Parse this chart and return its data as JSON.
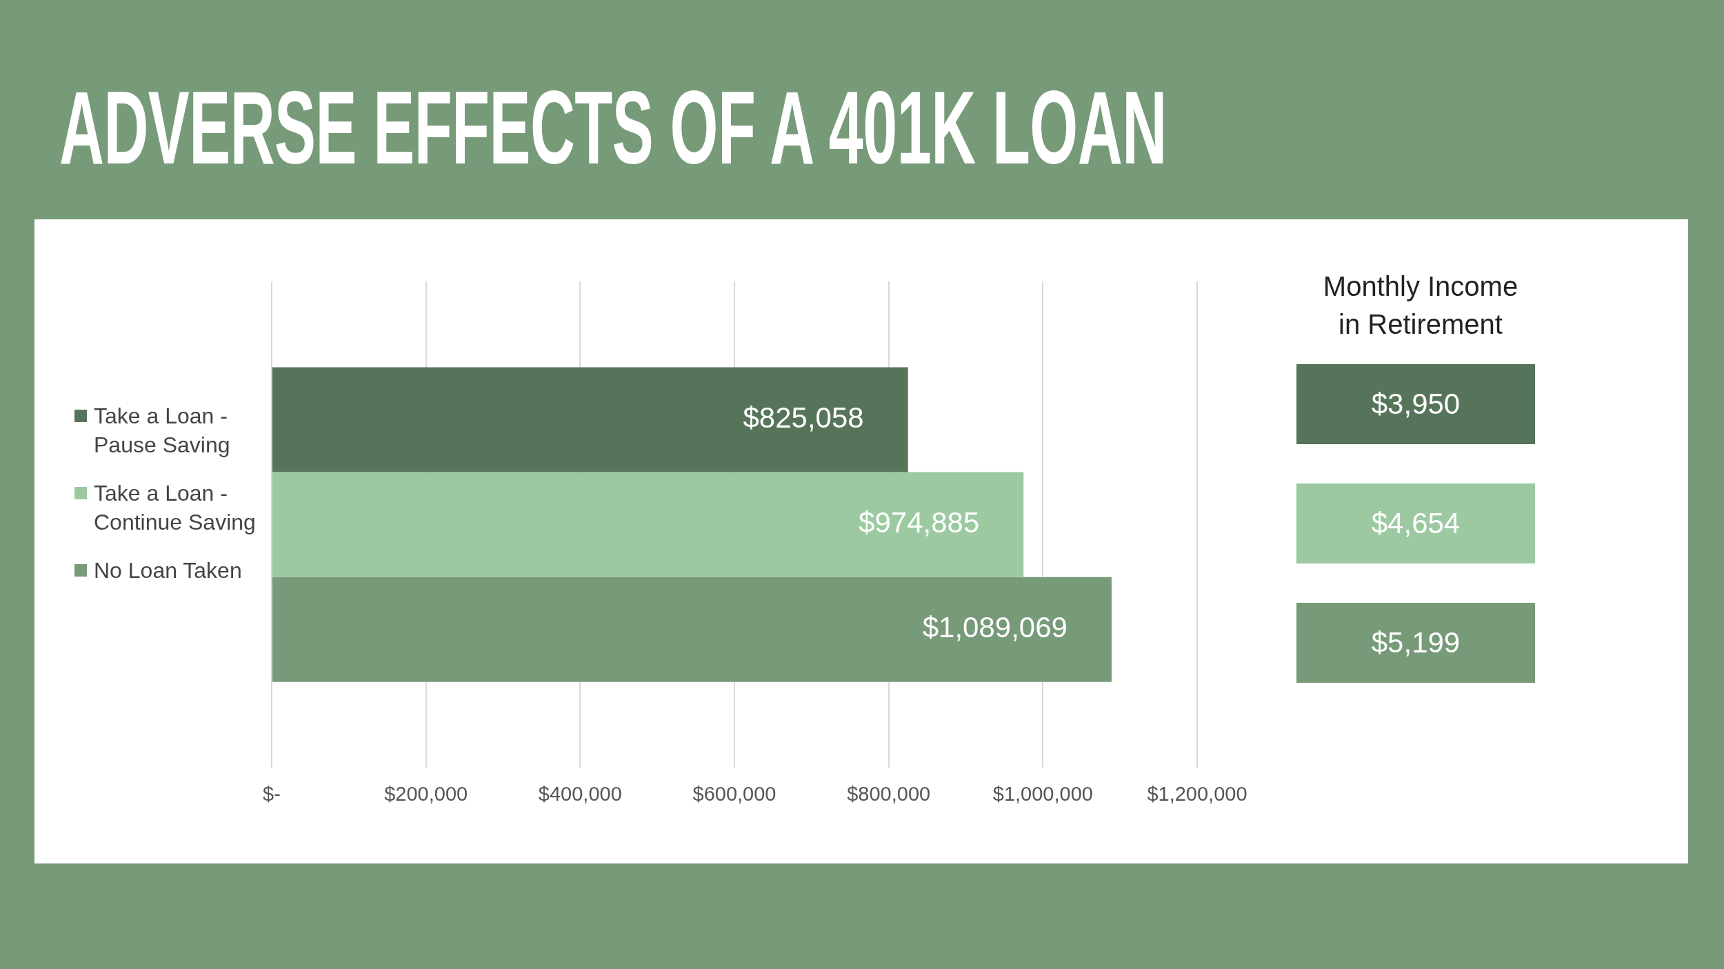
{
  "chart_data": [
    {
      "type": "bar",
      "title": "ADVERSE EFFECTS OF A 401K LOAN",
      "orientation": "horizontal",
      "categories": [
        null
      ],
      "series": [
        {
          "name": "Take a Loan - Pause Saving",
          "color": "#56745a",
          "values": [
            825058
          ],
          "value_labels": [
            "$825,058"
          ]
        },
        {
          "name": "Take a Loan - Continue Saving",
          "color": "#9cc9a1",
          "values": [
            974885
          ],
          "value_labels": [
            "$974,885"
          ]
        },
        {
          "name": "No Loan Taken",
          "color": "#779a79",
          "values": [
            1089069
          ],
          "value_labels": [
            "$1,089,069"
          ]
        }
      ],
      "xlim": [
        0,
        1200000
      ],
      "xticks": [
        {
          "value": 0,
          "label": "$-"
        },
        {
          "value": 200000,
          "label": "$200,000"
        },
        {
          "value": 400000,
          "label": "$400,000"
        },
        {
          "value": 600000,
          "label": "$600,000"
        },
        {
          "value": 800000,
          "label": "$800,000"
        },
        {
          "value": 1000000,
          "label": "$1,000,000"
        },
        {
          "value": 1200000,
          "label": "$1,200,000"
        }
      ],
      "grid": "x",
      "legend": "left"
    },
    {
      "type": "other",
      "title": "Monthly Income\nin Retirement",
      "annotations": [
        "$3,950",
        "$4,654",
        "$5,199"
      ],
      "colors": [
        "#56745a",
        "#9cc9a1",
        "#779a79"
      ]
    }
  ]
}
